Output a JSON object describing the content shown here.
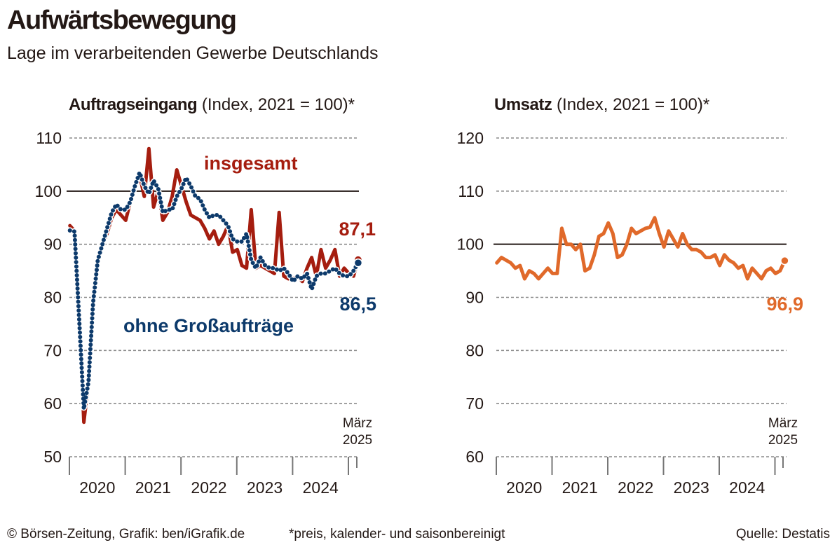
{
  "header": {
    "title": "Aufwärtsbewegung",
    "subtitle": "Lage im verarbeitenden Gewerbe Deutschlands"
  },
  "footer": {
    "copyright": "© Börsen-Zeitung, Grafik: ben/iGrafik.de",
    "note": "*preis, kalender- und saisonbereinigt",
    "source": "Quelle: Destatis"
  },
  "colors": {
    "insgesamt": "#a51d0f",
    "ohne_grossauftraege": "#0d3a6b",
    "umsatz": "#e0692a",
    "reference_line": "#231815",
    "grid": "#8a8a8a"
  },
  "chart_data": [
    {
      "type": "line",
      "title_bold": "Auftragseingang",
      "title_rest": " (Index, 2021 = 100)*",
      "xlabel": "",
      "ylabel": "",
      "x_start": "2020-01",
      "x_end": "2025-03",
      "x_ticks": [
        "2020",
        "2021",
        "2022",
        "2023",
        "2024"
      ],
      "end_marker_label": [
        "März",
        "2025"
      ],
      "yticks": [
        50,
        60,
        70,
        80,
        90,
        100,
        110
      ],
      "ylim": [
        50,
        110
      ],
      "reference_line": 100,
      "grid": true,
      "series": [
        {
          "name": "insgesamt",
          "label": "insgesamt",
          "last_value_label": "87,1",
          "style": "solid",
          "values": [
            93.5,
            92.5,
            78,
            56.5,
            64,
            80,
            87,
            90,
            92,
            95,
            96.5,
            95.5,
            94.5,
            98,
            101,
            103,
            99,
            108,
            97,
            100,
            94.5,
            96,
            99,
            104,
            101,
            98,
            95.5,
            95,
            94.5,
            93,
            91,
            92.5,
            90,
            91.5,
            93.5,
            88.5,
            89,
            86,
            85.5,
            96.5,
            85.5,
            86,
            85.5,
            85,
            84.5,
            96,
            84,
            83.5,
            83.5,
            84,
            83,
            85.5,
            87.5,
            84,
            89,
            85.5,
            87,
            89,
            84,
            85.5,
            84.5,
            84,
            87.1
          ]
        },
        {
          "name": "ohne Großaufträge",
          "label": "ohne Großaufträge",
          "last_value_label": "86,5",
          "style": "dotted",
          "values": [
            92.6,
            92.4,
            76,
            59,
            64,
            79,
            87,
            90,
            93,
            96,
            97.5,
            96.5,
            96.5,
            98,
            101,
            103.5,
            101,
            99.5,
            102,
            100.5,
            96,
            96.5,
            96.5,
            99,
            100.5,
            102.5,
            101,
            99,
            98.5,
            96.5,
            95,
            95.5,
            95.5,
            94.5,
            93.5,
            91,
            90.5,
            90.5,
            92,
            87,
            85.5,
            87.5,
            86,
            85.5,
            85.5,
            85,
            85.5,
            84.5,
            83,
            84,
            83.5,
            84.5,
            81.5,
            84,
            84.5,
            84.5,
            85,
            85.5,
            84.5,
            84,
            84,
            85,
            86.5
          ]
        }
      ]
    },
    {
      "type": "line",
      "title_bold": "Umsatz",
      "title_rest": " (Index, 2021 = 100)*",
      "xlabel": "",
      "ylabel": "",
      "x_start": "2020-01",
      "x_end": "2025-03",
      "x_ticks": [
        "2020",
        "2021",
        "2022",
        "2023",
        "2024"
      ],
      "end_marker_label": [
        "März",
        "2025"
      ],
      "yticks": [
        60,
        70,
        80,
        90,
        100,
        110,
        120
      ],
      "ylim": [
        60,
        120
      ],
      "reference_line": 100,
      "grid": true,
      "series": [
        {
          "name": "Umsatz",
          "last_value_label": "96,9",
          "style": "solid",
          "values": [
            96.5,
            97.5,
            97,
            96.5,
            95.5,
            96,
            93.5,
            95,
            94.5,
            93.5,
            94.5,
            95.5,
            94.5,
            94.5,
            103,
            100,
            100,
            99,
            100,
            95,
            95.5,
            98,
            101.5,
            102,
            104,
            102,
            97.5,
            98,
            100,
            103,
            102,
            102.5,
            103,
            103.2,
            105,
            102,
            99.5,
            102.5,
            101,
            99.5,
            102,
            100,
            99,
            99,
            98.5,
            97.5,
            97.5,
            98,
            96,
            98,
            97,
            96.5,
            95.5,
            96,
            93.5,
            95.5,
            94.5,
            93.5,
            95,
            95.5,
            94.5,
            95,
            96.9
          ]
        }
      ]
    }
  ]
}
